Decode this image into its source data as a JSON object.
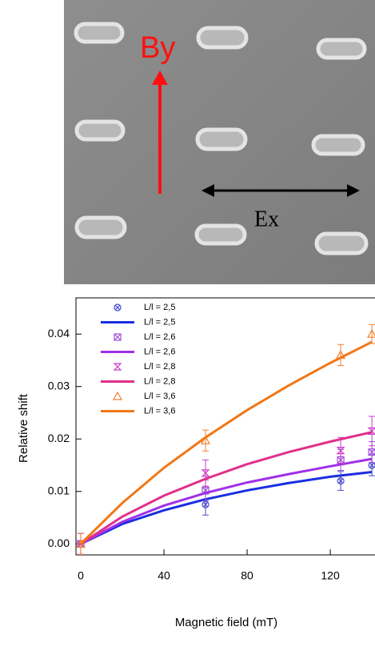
{
  "annotations": {
    "by": "By",
    "ex": "Ex"
  },
  "chart_data": {
    "type": "line",
    "xlabel": "Magnetic field (mT)",
    "ylabel": "Relative shift",
    "xlim": [
      -2.3,
      141.5
    ],
    "ylim": [
      -0.0021,
      0.0469
    ],
    "xticks": [
      0,
      40,
      80,
      120
    ],
    "yticks": [
      {
        "value": 0,
        "label": "0.00"
      },
      {
        "value": 0.01,
        "label": "0.01"
      },
      {
        "value": 0.02,
        "label": "0.02"
      },
      {
        "value": 0.03,
        "label": "0.03"
      },
      {
        "value": 0.04,
        "label": "0.04"
      }
    ],
    "series": [
      {
        "name": "L/l = 2,5",
        "color": "#4a4ad0",
        "marker": "circle-x",
        "x": [
          0,
          60,
          125,
          140
        ],
        "values": [
          0,
          0.0075,
          0.012,
          0.015
        ],
        "errors": [
          0.002,
          0.002,
          0.0018,
          0.002
        ]
      },
      {
        "name": "L/l = 2,5",
        "color": "#1a2ee0",
        "x": [
          0,
          20,
          40,
          60,
          80,
          100,
          120,
          140
        ],
        "values": [
          0,
          0.0038,
          0.0064,
          0.0085,
          0.0102,
          0.0116,
          0.0128,
          0.0137
        ]
      },
      {
        "name": "L/l = 2,6",
        "color": "#a050d8",
        "marker": "square-x",
        "x": [
          0,
          60,
          125,
          140
        ],
        "values": [
          0,
          0.0102,
          0.016,
          0.0175
        ],
        "errors": [
          0.002,
          0.002,
          0.002,
          0.002
        ]
      },
      {
        "name": "L/l = 2,6",
        "color": "#a030e8",
        "x": [
          0,
          20,
          40,
          60,
          80,
          100,
          120,
          140
        ],
        "values": [
          0,
          0.0042,
          0.0073,
          0.0097,
          0.0117,
          0.0133,
          0.0148,
          0.0162
        ]
      },
      {
        "name": "L/l = 2,8",
        "color": "#c83cc8",
        "marker": "hourglass",
        "x": [
          0,
          60,
          125,
          140
        ],
        "values": [
          0,
          0.0135,
          0.0178,
          0.0215
        ],
        "errors": [
          0.002,
          0.0025,
          0.0025,
          0.0028
        ]
      },
      {
        "name": "L/l = 2,8",
        "color": "#e0308c",
        "x": [
          0,
          20,
          40,
          60,
          80,
          100,
          120,
          140
        ],
        "values": [
          0,
          0.0052,
          0.0092,
          0.0124,
          0.0152,
          0.0175,
          0.0195,
          0.0213
        ]
      },
      {
        "name": "L/l = 3,6",
        "color": "#f08030",
        "marker": "triangle",
        "x": [
          0,
          60,
          125,
          140
        ],
        "values": [
          0,
          0.0197,
          0.036,
          0.04
        ],
        "errors": [
          0.002,
          0.002,
          0.002,
          0.0018
        ]
      },
      {
        "name": "L/l = 3,6",
        "color": "#f07818",
        "x": [
          0,
          20,
          40,
          60,
          80,
          100,
          120,
          140
        ],
        "values": [
          0,
          0.0078,
          0.0145,
          0.0203,
          0.0255,
          0.0302,
          0.0345,
          0.0385
        ]
      }
    ]
  }
}
